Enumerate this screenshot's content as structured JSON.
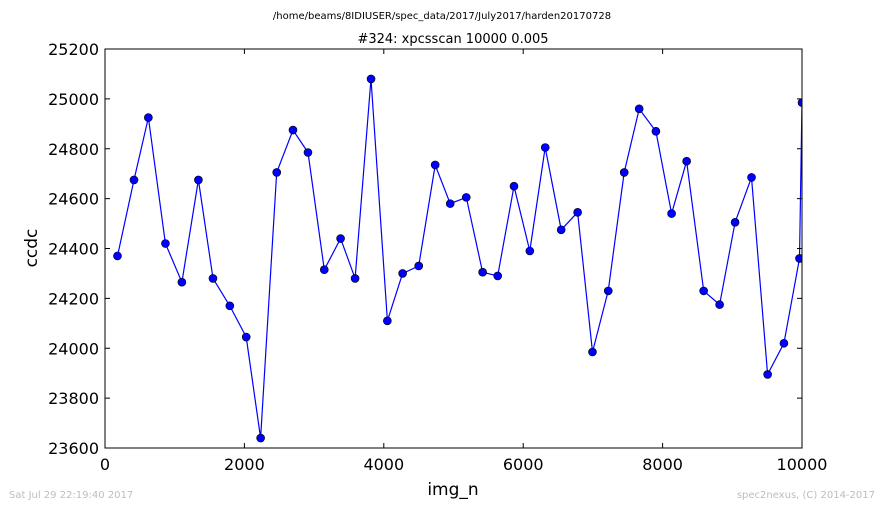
{
  "chart_data": {
    "type": "line",
    "suptitle": "/home/beams/8IDIUSER/spec_data/2017/July2017/harden20170728",
    "title": "#324: xpcsscan 10000 0.005",
    "xlabel": "img_n",
    "ylabel": "ccdc",
    "xlim": [
      0,
      10000
    ],
    "ylim": [
      23600,
      25200
    ],
    "xticks": [
      "0",
      "2000",
      "4000",
      "6000",
      "8000",
      "10000"
    ],
    "yticks": [
      "23600",
      "23800",
      "24000",
      "24200",
      "24400",
      "24600",
      "24800",
      "25000",
      "25200"
    ],
    "grid": false,
    "marker": "circle",
    "line_color": "#0000ff",
    "marker_color": "#0000ff",
    "series": [
      {
        "x": [
          179,
          416,
          622,
          867,
          1103,
          1340,
          1549,
          1791,
          2026,
          2233,
          2464,
          2697,
          2912,
          3146,
          3380,
          3588,
          3817,
          4051,
          4270,
          4501,
          4737,
          4953,
          5183,
          5418,
          5634,
          5868,
          6095,
          6316,
          6545,
          6781,
          6994,
          7220,
          7449,
          7664,
          7904,
          8129,
          8345,
          8589,
          8818,
          9040,
          9276,
          9507,
          9741,
          9964,
          10000
        ],
        "y": [
          24370,
          24675,
          24925,
          24420,
          24265,
          24675,
          24280,
          24170,
          24045,
          23640,
          24705,
          24875,
          24785,
          24315,
          24440,
          24280,
          25080,
          24110,
          24300,
          24330,
          24735,
          24580,
          24605,
          24305,
          24290,
          24650,
          24390,
          24805,
          24475,
          24545,
          23985,
          24230,
          24705,
          24960,
          24870,
          24540,
          24750,
          24230,
          24175,
          24505,
          24685,
          23895,
          24020,
          24360,
          24985
        ]
      }
    ]
  },
  "footer": {
    "timestamp": "Sat Jul 29 22:19:40 2017",
    "credit": "spec2nexus, (C) 2014-2017"
  }
}
